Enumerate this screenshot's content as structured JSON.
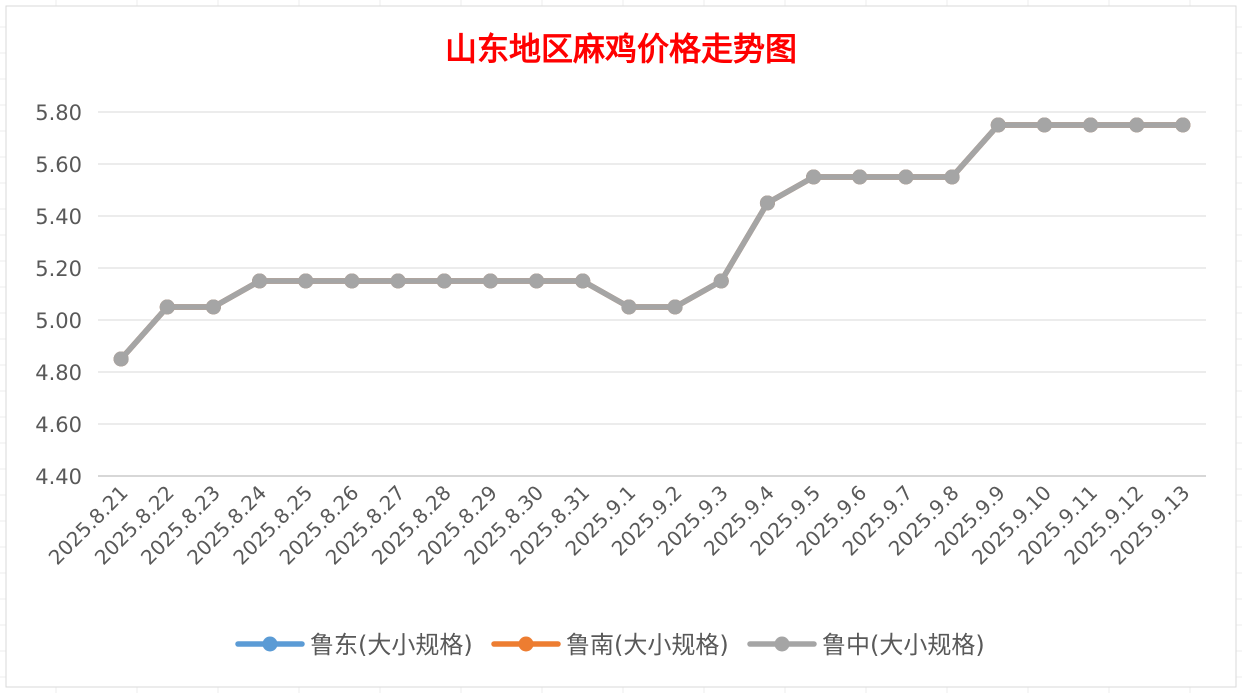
{
  "chart_data": {
    "type": "line",
    "title": "山东地区麻鸡价格走势图",
    "xlabel": "",
    "ylabel": "",
    "ylim": [
      4.4,
      5.8
    ],
    "yticks": [
      "4.40",
      "4.60",
      "4.80",
      "5.00",
      "5.20",
      "5.40",
      "5.60",
      "5.80"
    ],
    "grid": true,
    "legend_position": "bottom",
    "categories": [
      "2025.8.21",
      "2025.8.22",
      "2025.8.23",
      "2025.8.24",
      "2025.8.25",
      "2025.8.26",
      "2025.8.27",
      "2025.8.28",
      "2025.8.29",
      "2025.8.30",
      "2025.8.31",
      "2025.9.1",
      "2025.9.2",
      "2025.9.3",
      "2025.9.4",
      "2025.9.5",
      "2025.9.6",
      "2025.9.7",
      "2025.9.8",
      "2025.9.9",
      "2025.9.10",
      "2025.9.11",
      "2025.9.12",
      "2025.9.13"
    ],
    "series": [
      {
        "name": "鲁东(大小规格)",
        "color": "#5B9BD5",
        "values": [
          4.85,
          5.05,
          5.05,
          5.15,
          5.15,
          5.15,
          5.15,
          5.15,
          5.15,
          5.15,
          5.15,
          5.05,
          5.05,
          5.15,
          5.45,
          5.55,
          5.55,
          5.55,
          5.55,
          5.75,
          5.75,
          5.75,
          5.75,
          5.75
        ]
      },
      {
        "name": "鲁南(大小规格)",
        "color": "#ED7D31",
        "values": [
          4.85,
          5.05,
          5.05,
          5.15,
          5.15,
          5.15,
          5.15,
          5.15,
          5.15,
          5.15,
          5.15,
          5.05,
          5.05,
          5.15,
          5.45,
          5.55,
          5.55,
          5.55,
          5.55,
          5.75,
          5.75,
          5.75,
          5.75,
          5.75
        ]
      },
      {
        "name": "鲁中(大小规格)",
        "color": "#A5A5A5",
        "values": [
          4.85,
          5.05,
          5.05,
          5.15,
          5.15,
          5.15,
          5.15,
          5.15,
          5.15,
          5.15,
          5.15,
          5.05,
          5.05,
          5.15,
          5.45,
          5.55,
          5.55,
          5.55,
          5.55,
          5.75,
          5.75,
          5.75,
          5.75,
          5.75
        ]
      }
    ],
    "title_color": "#FF0000"
  }
}
